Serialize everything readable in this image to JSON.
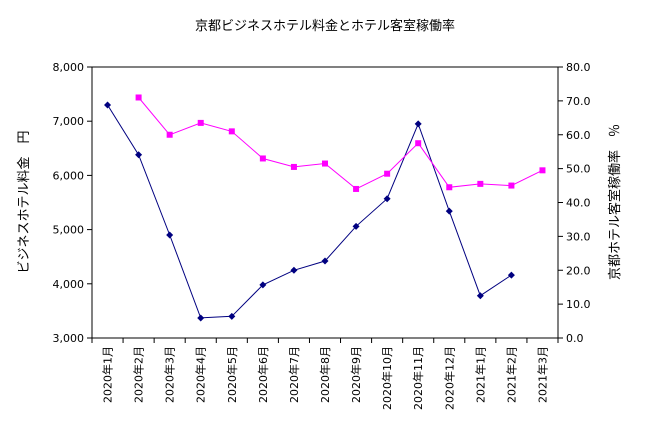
{
  "chart_data": {
    "type": "line",
    "title": "京都ビジネスホテル料金とホテル客室稼働率",
    "categories": [
      "2020年1月",
      "2020年2月",
      "2020年3月",
      "2020年4月",
      "2020年5月",
      "2020年6月",
      "2020年7月",
      "2020年8月",
      "2020年9月",
      "2020年10月",
      "2020年11月",
      "2020年12月",
      "2021年1月",
      "2021年2月",
      "2021年3月"
    ],
    "y_left": {
      "label": "ビジネスホテル料金　円",
      "range": [
        3000,
        8000
      ],
      "ticks": [
        "3,000",
        "4,000",
        "5,000",
        "6,000",
        "7,000",
        "8,000"
      ]
    },
    "y_right": {
      "label": "京都ホテル客室稼働率　％",
      "range": [
        0,
        80
      ],
      "ticks": [
        "0.0",
        "10.0",
        "20.0",
        "30.0",
        "40.0",
        "50.0",
        "60.0",
        "70.0",
        "80.0"
      ]
    },
    "series": [
      {
        "axis": "left",
        "color": "#000080",
        "marker": "diamond",
        "values": [
          7300,
          6380,
          4900,
          3370,
          3400,
          3980,
          4250,
          4420,
          5060,
          5570,
          6950,
          5340,
          3780,
          4160,
          null
        ]
      },
      {
        "axis": "right",
        "color": "#ff00ff",
        "marker": "square",
        "values": [
          null,
          71.0,
          60.0,
          63.5,
          61.0,
          53.0,
          50.5,
          51.5,
          44.0,
          48.5,
          57.5,
          44.5,
          45.5,
          45.0,
          49.5
        ]
      }
    ],
    "grid": false,
    "legend": "none"
  }
}
